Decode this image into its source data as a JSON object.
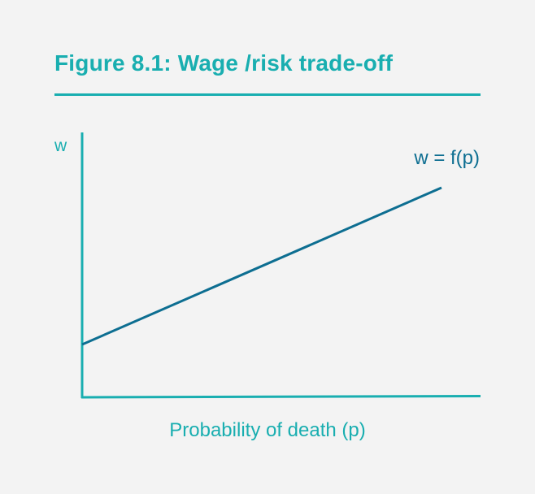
{
  "figure": {
    "title": "Figure 8.1: Wage /risk trade-off"
  },
  "diagram": {
    "y_axis_label": "w",
    "x_axis_label": "Probability of death (p)",
    "curve_label": "w = f(p)",
    "colors": {
      "accent": "#19aeb0",
      "curve": "#0d6e91",
      "background": "#f3f3f3"
    }
  }
}
